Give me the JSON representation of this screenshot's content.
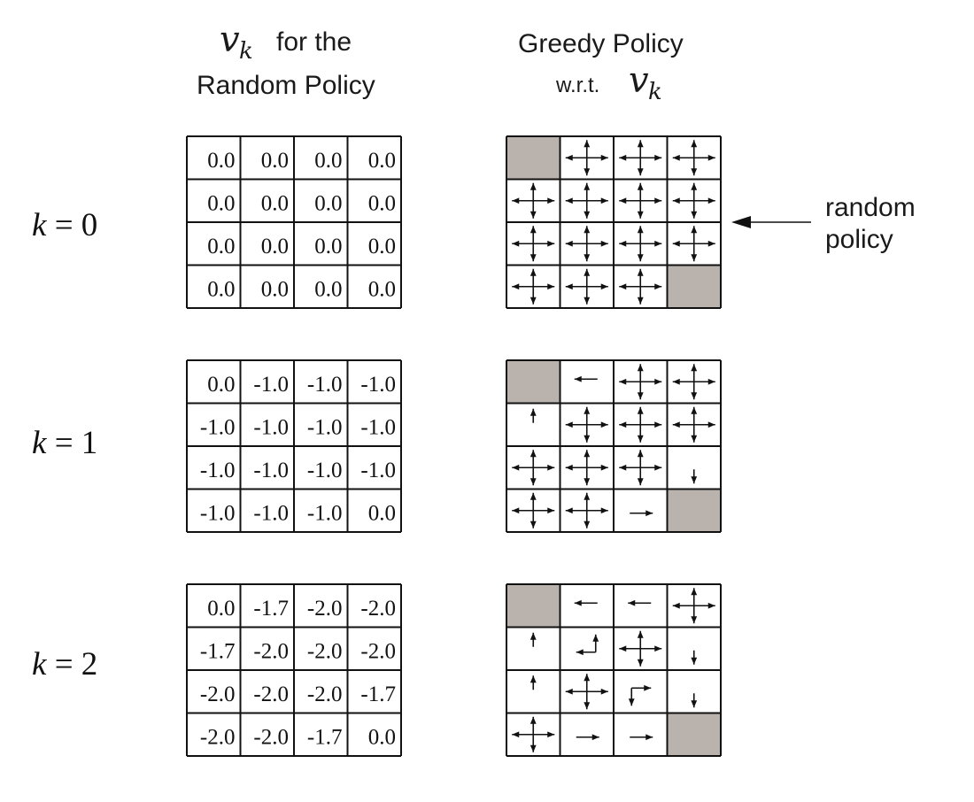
{
  "headers": {
    "left_math": "v",
    "left_math_sub": "k",
    "left_line1": "for the",
    "left_line2": "Random Policy",
    "right_line1": "Greedy Policy",
    "right_line2": "w.r.t.",
    "right_math": "v",
    "right_math_sub": "k"
  },
  "annotation": {
    "line1": "random",
    "line2": "policy"
  },
  "rows": [
    {
      "k_label": "k",
      "k_eq": " = 0",
      "values": [
        [
          "0.0",
          "0.0",
          "0.0",
          "0.0"
        ],
        [
          "0.0",
          "0.0",
          "0.0",
          "0.0"
        ],
        [
          "0.0",
          "0.0",
          "0.0",
          "0.0"
        ],
        [
          "0.0",
          "0.0",
          "0.0",
          "0.0"
        ]
      ],
      "policy": [
        [
          "T",
          "LRUD",
          "LRUD",
          "LRUD"
        ],
        [
          "LRUD",
          "LRUD",
          "LRUD",
          "LRUD"
        ],
        [
          "LRUD",
          "LRUD",
          "LRUD",
          "LRUD"
        ],
        [
          "LRUD",
          "LRUD",
          "LRUD",
          "T"
        ]
      ]
    },
    {
      "k_label": "k",
      "k_eq": " = 1",
      "values": [
        [
          "0.0",
          "-1.0",
          "-1.0",
          "-1.0"
        ],
        [
          "-1.0",
          "-1.0",
          "-1.0",
          "-1.0"
        ],
        [
          "-1.0",
          "-1.0",
          "-1.0",
          "-1.0"
        ],
        [
          "-1.0",
          "-1.0",
          "-1.0",
          "0.0"
        ]
      ],
      "policy": [
        [
          "T",
          "L",
          "LRUD",
          "LRUD"
        ],
        [
          "U",
          "LRUD",
          "LRUD",
          "LRUD"
        ],
        [
          "LRUD",
          "LRUD",
          "LRUD",
          "D"
        ],
        [
          "LRUD",
          "LRUD",
          "R",
          "T"
        ]
      ]
    },
    {
      "k_label": "k",
      "k_eq": " = 2",
      "values": [
        [
          "0.0",
          "-1.7",
          "-2.0",
          "-2.0"
        ],
        [
          "-1.7",
          "-2.0",
          "-2.0",
          "-2.0"
        ],
        [
          "-2.0",
          "-2.0",
          "-2.0",
          "-1.7"
        ],
        [
          "-2.0",
          "-2.0",
          "-1.7",
          "0.0"
        ]
      ],
      "policy": [
        [
          "T",
          "L",
          "L",
          "LRUD"
        ],
        [
          "U",
          "LU",
          "LRUD",
          "D"
        ],
        [
          "U",
          "LRUD",
          "RD",
          "D"
        ],
        [
          "LRUD",
          "R",
          "R",
          "T"
        ]
      ]
    }
  ],
  "colors": {
    "terminal_fill": "#bab3ad",
    "line": "#111111"
  }
}
